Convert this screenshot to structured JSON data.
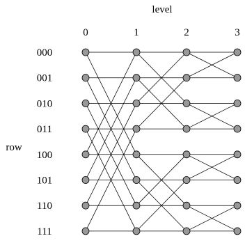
{
  "axis": {
    "top_label": "level",
    "side_label": "row"
  },
  "levels": [
    "0",
    "1",
    "2",
    "3"
  ],
  "rows": [
    "000",
    "001",
    "010",
    "011",
    "100",
    "101",
    "110",
    "111"
  ],
  "colors": {
    "node_fill": "#999999",
    "stroke": "#000000"
  }
}
